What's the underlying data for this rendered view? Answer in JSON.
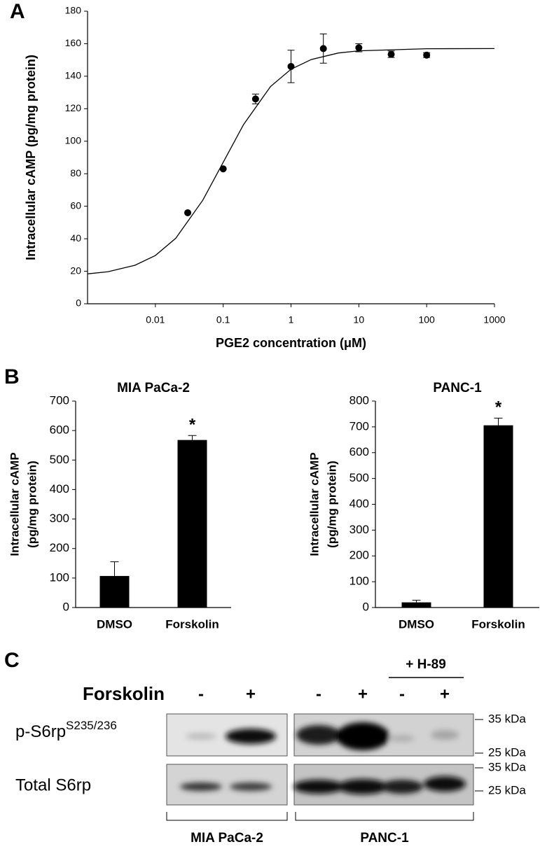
{
  "panel_labels": [
    "A",
    "B",
    "C"
  ],
  "chart_data": [
    {
      "type": "scatter",
      "x_label": "PGE2 concentration (μM)",
      "y_label": "Intracellular cAMP (pg/mg protein)",
      "log_x": true,
      "xlim": [
        0.001,
        1000
      ],
      "xticks": [
        0.01,
        0.1,
        1,
        10,
        100,
        1000
      ],
      "ylim": [
        0,
        180
      ],
      "yticks": [
        0,
        20,
        40,
        60,
        80,
        100,
        120,
        140,
        160,
        180
      ],
      "series": [
        {
          "color": "#000000",
          "x": [
            0.03,
            0.1,
            0.3,
            1,
            3,
            10,
            30,
            100
          ],
          "values": [
            56,
            83,
            126,
            146,
            157,
            157.5,
            153.5,
            153
          ],
          "errors": [
            0,
            0,
            3,
            10,
            9,
            2.5,
            2,
            1.5
          ]
        }
      ],
      "fit": {
        "x": [
          0.001,
          0.002,
          0.005,
          0.01,
          0.02,
          0.05,
          0.1,
          0.2,
          0.5,
          1,
          2,
          5,
          10,
          100,
          1000
        ],
        "values": [
          18.4,
          19.7,
          23.7,
          29.7,
          40.3,
          63.7,
          87,
          110.3,
          133.7,
          144.3,
          150.3,
          154.3,
          155.6,
          156.9,
          157
        ]
      }
    },
    {
      "type": "bar",
      "title": "MIA PaCa-2",
      "y_label": [
        "Intracellular cAMP",
        "(pg/mg protein)"
      ],
      "categories": [
        "DMSO",
        "Forskolin"
      ],
      "values": [
        107,
        568
      ],
      "errors": [
        48,
        15
      ],
      "markers": [
        null,
        "*"
      ],
      "color": "#000000",
      "ylim": [
        0,
        700
      ],
      "yticks": [
        0,
        100,
        200,
        300,
        400,
        500,
        600,
        700
      ]
    },
    {
      "type": "bar",
      "title": "PANC-1",
      "y_label": [
        "Intracellular cAMP",
        "(pg/mg protein)"
      ],
      "categories": [
        "DMSO",
        "Forskolin"
      ],
      "values": [
        20,
        706
      ],
      "errors": [
        8,
        28
      ],
      "markers": [
        null,
        "*"
      ],
      "color": "#000000",
      "ylim": [
        0,
        800
      ],
      "yticks": [
        0,
        100,
        200,
        300,
        400,
        500,
        600,
        700,
        800
      ]
    }
  ],
  "blot": {
    "treatment": "Forskolin",
    "lanes": [
      "-",
      "+",
      "-",
      "+",
      "-",
      "+"
    ],
    "inhibitor": "+ H-89",
    "rows": [
      {
        "label": "p-S6rp",
        "superscript": "S235/236"
      },
      {
        "label": "Total S6rp"
      }
    ],
    "markers": [
      "35 kDa",
      "25 kDa",
      "35 kDa",
      "25 kDa"
    ],
    "groups": [
      "MIA PaCa-2",
      "PANC-1"
    ]
  }
}
